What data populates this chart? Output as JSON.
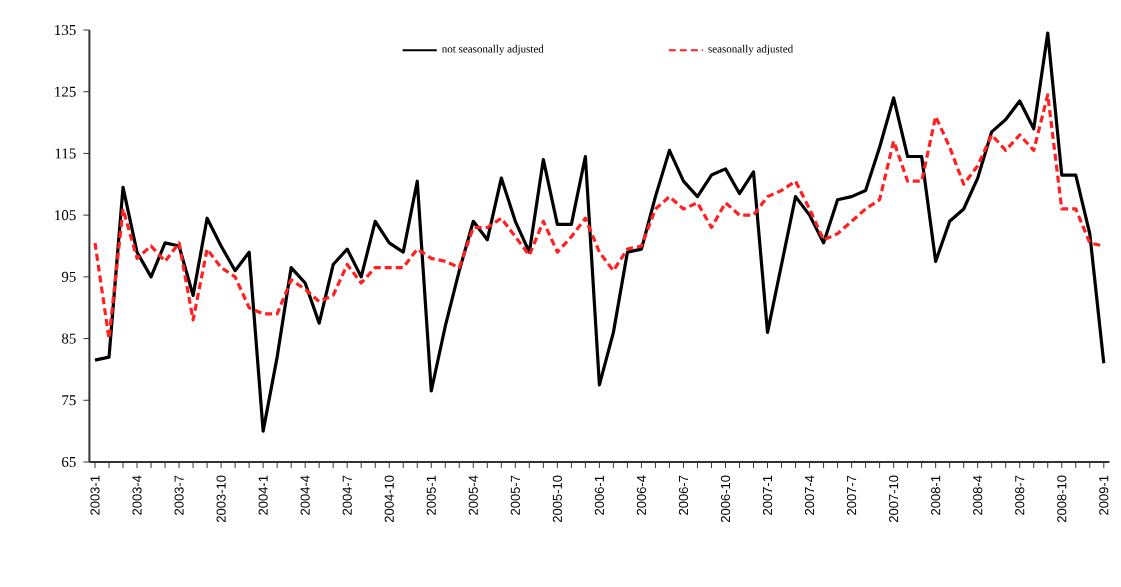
{
  "chart_data": {
    "type": "line",
    "categories": [
      "2003-1",
      null,
      null,
      "2003-4",
      null,
      null,
      "2003-7",
      null,
      null,
      "2003-10",
      null,
      null,
      "2004-1",
      null,
      null,
      "2004-4",
      null,
      null,
      "2004-7",
      null,
      null,
      "2004-10",
      null,
      null,
      "2005-1",
      null,
      null,
      "2005-4",
      null,
      null,
      "2005-7",
      null,
      null,
      "2005-10",
      null,
      null,
      "2006-1",
      null,
      null,
      "2006-4",
      null,
      null,
      "2006-7",
      null,
      null,
      "2006-10",
      null,
      null,
      "2007-1",
      null,
      null,
      "2007-4",
      null,
      null,
      "2007-7",
      null,
      null,
      "2007-10",
      null,
      null,
      "2008-1",
      null,
      null,
      "2008-4",
      null,
      null,
      "2008-7",
      null,
      null,
      "2008-10",
      null,
      null,
      "2009-1"
    ],
    "ylim": [
      65,
      135
    ],
    "yticks": [
      65,
      75,
      85,
      95,
      105,
      115,
      125,
      135
    ],
    "legend": "top",
    "series": [
      {
        "name": "not seasonally adjusted",
        "color": "#000000",
        "line_style": "solid",
        "values": [
          81.5,
          82,
          109.5,
          99,
          95,
          100.5,
          100,
          92,
          104.5,
          100,
          96,
          99,
          70,
          82,
          96.5,
          94,
          87.5,
          97,
          99.5,
          95,
          104,
          100.5,
          99,
          110.5,
          76.5,
          87,
          96,
          104,
          101,
          111,
          104,
          99,
          114,
          103.5,
          103.5,
          114.5,
          77.5,
          86,
          99,
          99.5,
          108,
          115.5,
          110.5,
          108,
          111.5,
          112.5,
          108.5,
          112,
          86,
          97,
          108,
          105,
          100.5,
          107.5,
          108,
          109,
          116,
          124,
          114.5,
          114.5,
          97.5,
          104,
          106,
          111,
          118.5,
          120.5,
          123.5,
          119,
          134.5,
          111.5,
          111.5,
          102,
          81
        ]
      },
      {
        "name": "seasonally adjusted",
        "color": "#ff2020",
        "line_style": "dashed",
        "values": [
          100.5,
          85,
          106,
          98,
          100,
          97.5,
          100.5,
          88,
          99.5,
          96.5,
          95,
          90,
          89,
          89,
          94.5,
          93,
          91,
          92,
          97,
          94,
          96.5,
          96.5,
          96.5,
          99.5,
          98,
          97.5,
          96.5,
          103,
          103,
          104.5,
          101.5,
          98.5,
          104,
          99,
          101.5,
          104.5,
          99,
          96,
          99.5,
          100,
          106,
          108,
          106,
          107,
          103,
          107,
          105,
          105,
          108,
          109,
          110.5,
          106,
          101,
          102,
          104,
          106,
          107.5,
          117,
          110.5,
          110.5,
          121,
          116,
          110,
          113,
          118,
          115.5,
          118,
          115.5,
          124.5,
          106,
          106,
          100.5,
          100
        ]
      }
    ]
  }
}
